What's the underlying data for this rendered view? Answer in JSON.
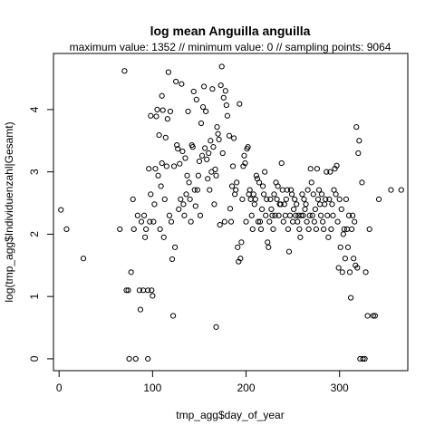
{
  "chart_data": {
    "type": "scatter",
    "title": "log mean Anguilla anguilla",
    "subtitle": "maximum value: 1352  //  minimum value: 0  // sampling points: 9064",
    "xlabel": "tmp_agg$day_of_year",
    "ylabel": "log(tmp_agg$Individuenzahl|Gesamt)",
    "xlim": [
      -6,
      373
    ],
    "ylim": [
      -0.19,
      4.9
    ],
    "x_ticks": [
      0,
      100,
      200,
      300
    ],
    "y_ticks": [
      0,
      1,
      2,
      3,
      4
    ],
    "grid": false,
    "marker": "open-circle",
    "points": [
      [
        2,
        2.39
      ],
      [
        8,
        2.08
      ],
      [
        26,
        1.61
      ],
      [
        65,
        2.08
      ],
      [
        70,
        4.62
      ],
      [
        72,
        1.1
      ],
      [
        74,
        1.1
      ],
      [
        75,
        0
      ],
      [
        77,
        1.39
      ],
      [
        79,
        2.56
      ],
      [
        80,
        2.08
      ],
      [
        82,
        0
      ],
      [
        84,
        2.3
      ],
      [
        86,
        1.1
      ],
      [
        87,
        0.79
      ],
      [
        88,
        2.2
      ],
      [
        90,
        1.1
      ],
      [
        91,
        2.3
      ],
      [
        92,
        1.95
      ],
      [
        93,
        2.08
      ],
      [
        95,
        1.1
      ],
      [
        95,
        0
      ],
      [
        96,
        3.05
      ],
      [
        97,
        2.2
      ],
      [
        98,
        3.9
      ],
      [
        98,
        2.64
      ],
      [
        99,
        1.1
      ],
      [
        100,
        1.01
      ],
      [
        101,
        2.2
      ],
      [
        102,
        2.48
      ],
      [
        103,
        3.05
      ],
      [
        104,
        3.89
      ],
      [
        105,
        4.0
      ],
      [
        106,
        2.94
      ],
      [
        107,
        3.59
      ],
      [
        108,
        2.08
      ],
      [
        109,
        2.77
      ],
      [
        110,
        4.22
      ],
      [
        110,
        3.14
      ],
      [
        111,
        3.99
      ],
      [
        112,
        1.95
      ],
      [
        113,
        2.56
      ],
      [
        114,
        3.55
      ],
      [
        115,
        3.09
      ],
      [
        116,
        3.85
      ],
      [
        117,
        4.6
      ],
      [
        118,
        2.3
      ],
      [
        119,
        3.97
      ],
      [
        120,
        2.2
      ],
      [
        121,
        1.6
      ],
      [
        122,
        0.69
      ],
      [
        123,
        3.09
      ],
      [
        124,
        1.79
      ],
      [
        125,
        4.45
      ],
      [
        126,
        3.43
      ],
      [
        127,
        3.37
      ],
      [
        128,
        2.4
      ],
      [
        129,
        3.13
      ],
      [
        130,
        2.56
      ],
      [
        131,
        4.41
      ],
      [
        132,
        3.33
      ],
      [
        133,
        2.48
      ],
      [
        134,
        2.3
      ],
      [
        135,
        3.22
      ],
      [
        136,
        2.64
      ],
      [
        137,
        2.94
      ],
      [
        138,
        3.97
      ],
      [
        139,
        2.83
      ],
      [
        140,
        2.56
      ],
      [
        141,
        2.2
      ],
      [
        142,
        3.43
      ],
      [
        143,
        3.4
      ],
      [
        144,
        4.29
      ],
      [
        145,
        2.71
      ],
      [
        146,
        2.45
      ],
      [
        147,
        4.16
      ],
      [
        148,
        2.71
      ],
      [
        149,
        2.94
      ],
      [
        150,
        3.17
      ],
      [
        151,
        2.3
      ],
      [
        152,
        3.78
      ],
      [
        153,
        3.26
      ],
      [
        154,
        4.04
      ],
      [
        155,
        4.37
      ],
      [
        156,
        3.38
      ],
      [
        157,
        3.97
      ],
      [
        158,
        3.2
      ],
      [
        159,
        2.89
      ],
      [
        160,
        3.3
      ],
      [
        161,
        2.71
      ],
      [
        162,
        3.5
      ],
      [
        163,
        3.0
      ],
      [
        164,
        4.33
      ],
      [
        165,
        3.4
      ],
      [
        166,
        2.48
      ],
      [
        167,
        3.04
      ],
      [
        168,
        0.51
      ],
      [
        168,
        2.94
      ],
      [
        169,
        3.72
      ],
      [
        170,
        3.61
      ],
      [
        171,
        3.52
      ],
      [
        172,
        2.15
      ],
      [
        173,
        4.39
      ],
      [
        174,
        4.69
      ],
      [
        175,
        3.3
      ],
      [
        176,
        4.19
      ],
      [
        177,
        2.2
      ],
      [
        178,
        4.3
      ],
      [
        179,
        4.07
      ],
      [
        180,
        3.9
      ],
      [
        182,
        3.58
      ],
      [
        183,
        2.41
      ],
      [
        184,
        2.2
      ],
      [
        185,
        2.77
      ],
      [
        186,
        3.09
      ],
      [
        187,
        3.54
      ],
      [
        188,
        2.64
      ],
      [
        189,
        2.71
      ],
      [
        190,
        2.83
      ],
      [
        191,
        1.79
      ],
      [
        192,
        1.56
      ],
      [
        193,
        4.09
      ],
      [
        194,
        1.61
      ],
      [
        195,
        1.87
      ],
      [
        196,
        2.56
      ],
      [
        197,
        3.09
      ],
      [
        198,
        3.26
      ],
      [
        199,
        3.14
      ],
      [
        200,
        2.2
      ],
      [
        201,
        3.37
      ],
      [
        202,
        3.4
      ],
      [
        203,
        2.64
      ],
      [
        204,
        2.71
      ],
      [
        205,
        2.56
      ],
      [
        206,
        2.3
      ],
      [
        207,
        2.08
      ],
      [
        208,
        2.64
      ],
      [
        209,
        2.48
      ],
      [
        210,
        2.56
      ],
      [
        211,
        2.94
      ],
      [
        212,
        2.89
      ],
      [
        213,
        2.2
      ],
      [
        214,
        2.83
      ],
      [
        215,
        2.2
      ],
      [
        216,
        2.08
      ],
      [
        217,
        2.4
      ],
      [
        218,
        2.77
      ],
      [
        219,
        2.64
      ],
      [
        220,
        3.0
      ],
      [
        221,
        2.3
      ],
      [
        222,
        2.56
      ],
      [
        223,
        1.87
      ],
      [
        224,
        1.79
      ],
      [
        225,
        2.2
      ],
      [
        226,
        2.56
      ],
      [
        227,
        2.4
      ],
      [
        228,
        2.3
      ],
      [
        229,
        2.08
      ],
      [
        230,
        2.64
      ],
      [
        231,
        2.3
      ],
      [
        232,
        2.83
      ],
      [
        233,
        2.56
      ],
      [
        234,
        2.77
      ],
      [
        235,
        2.3
      ],
      [
        236,
        2.48
      ],
      [
        237,
        2.48
      ],
      [
        238,
        3.14
      ],
      [
        239,
        2.71
      ],
      [
        240,
        2.2
      ],
      [
        241,
        2.48
      ],
      [
        242,
        2.3
      ],
      [
        243,
        2.56
      ],
      [
        244,
        2.71
      ],
      [
        245,
        2.08
      ],
      [
        246,
        1.72
      ],
      [
        247,
        2.3
      ],
      [
        248,
        2.71
      ],
      [
        249,
        2.64
      ],
      [
        250,
        2.2
      ],
      [
        251,
        2.4
      ],
      [
        252,
        2.56
      ],
      [
        253,
        2.3
      ],
      [
        254,
        2.48
      ],
      [
        255,
        2.2
      ],
      [
        256,
        2.3
      ],
      [
        257,
        2.08
      ],
      [
        258,
        1.95
      ],
      [
        259,
        2.3
      ],
      [
        260,
        2.64
      ],
      [
        261,
        2.3
      ],
      [
        262,
        2.56
      ],
      [
        263,
        2.4
      ],
      [
        264,
        2.48
      ],
      [
        265,
        2.2
      ],
      [
        266,
        2.71
      ],
      [
        267,
        2.08
      ],
      [
        268,
        2.3
      ],
      [
        269,
        3.05
      ],
      [
        270,
        2.83
      ],
      [
        271,
        2.3
      ],
      [
        272,
        2.64
      ],
      [
        273,
        2.2
      ],
      [
        274,
        2.4
      ],
      [
        275,
        2.08
      ],
      [
        276,
        3.05
      ],
      [
        277,
        2.56
      ],
      [
        278,
        2.71
      ],
      [
        279,
        2.48
      ],
      [
        280,
        2.3
      ],
      [
        281,
        2.64
      ],
      [
        282,
        2.2
      ],
      [
        283,
        2.08
      ],
      [
        284,
        2.48
      ],
      [
        285,
        2.56
      ],
      [
        286,
        3.0
      ],
      [
        287,
        2.3
      ],
      [
        288,
        1.95
      ],
      [
        289,
        2.56
      ],
      [
        290,
        3.0
      ],
      [
        291,
        2.08
      ],
      [
        292,
        2.48
      ],
      [
        293,
        2.3
      ],
      [
        294,
        2.71
      ],
      [
        295,
        3.05
      ],
      [
        296,
        2.64
      ],
      [
        297,
        3.1
      ],
      [
        298,
        2.2
      ],
      [
        299,
        1.46
      ],
      [
        300,
        2.56
      ],
      [
        301,
        1.79
      ],
      [
        302,
        2.4
      ],
      [
        303,
        1.39
      ],
      [
        304,
        2.0
      ],
      [
        305,
        2.08
      ],
      [
        306,
        1.61
      ],
      [
        307,
        2.56
      ],
      [
        308,
        2.08
      ],
      [
        309,
        1.79
      ],
      [
        310,
        2.3
      ],
      [
        311,
        1.39
      ],
      [
        312,
        0.98
      ],
      [
        313,
        2.08
      ],
      [
        314,
        2.3
      ],
      [
        315,
        1.61
      ],
      [
        316,
        2.2
      ],
      [
        317,
        1.5
      ],
      [
        318,
        3.72
      ],
      [
        319,
        1.46
      ],
      [
        320,
        3.3
      ],
      [
        321,
        3.5
      ],
      [
        322,
        0
      ],
      [
        324,
        2.83
      ],
      [
        325,
        0
      ],
      [
        327,
        0
      ],
      [
        328,
        1.39
      ],
      [
        330,
        0.69
      ],
      [
        332,
        2.08
      ],
      [
        336,
        0.69
      ],
      [
        338,
        0.69
      ],
      [
        342,
        2.56
      ],
      [
        355,
        2.71
      ],
      [
        366,
        2.71
      ]
    ]
  }
}
